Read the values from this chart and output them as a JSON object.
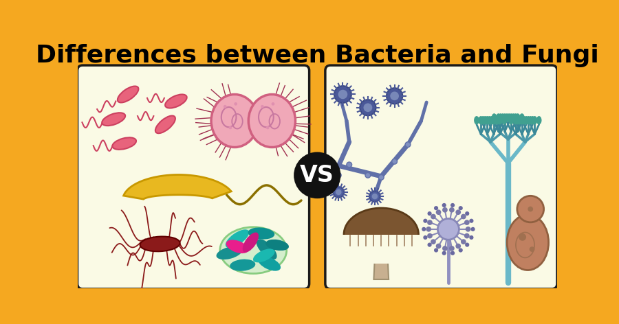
{
  "title": "Differences between Bacteria and Fungi",
  "title_bg": "#F5A820",
  "title_color": "#000000",
  "title_fontsize": 26,
  "panel_bg": "#FAFAE5",
  "panel_border": "#1a1a1a",
  "vs_circle_color": "#111111",
  "vs_text_color": "#ffffff",
  "vs_fontsize": 24,
  "overall_bg": "#F5A820",
  "fig_width": 9.0,
  "fig_height": 4.72
}
